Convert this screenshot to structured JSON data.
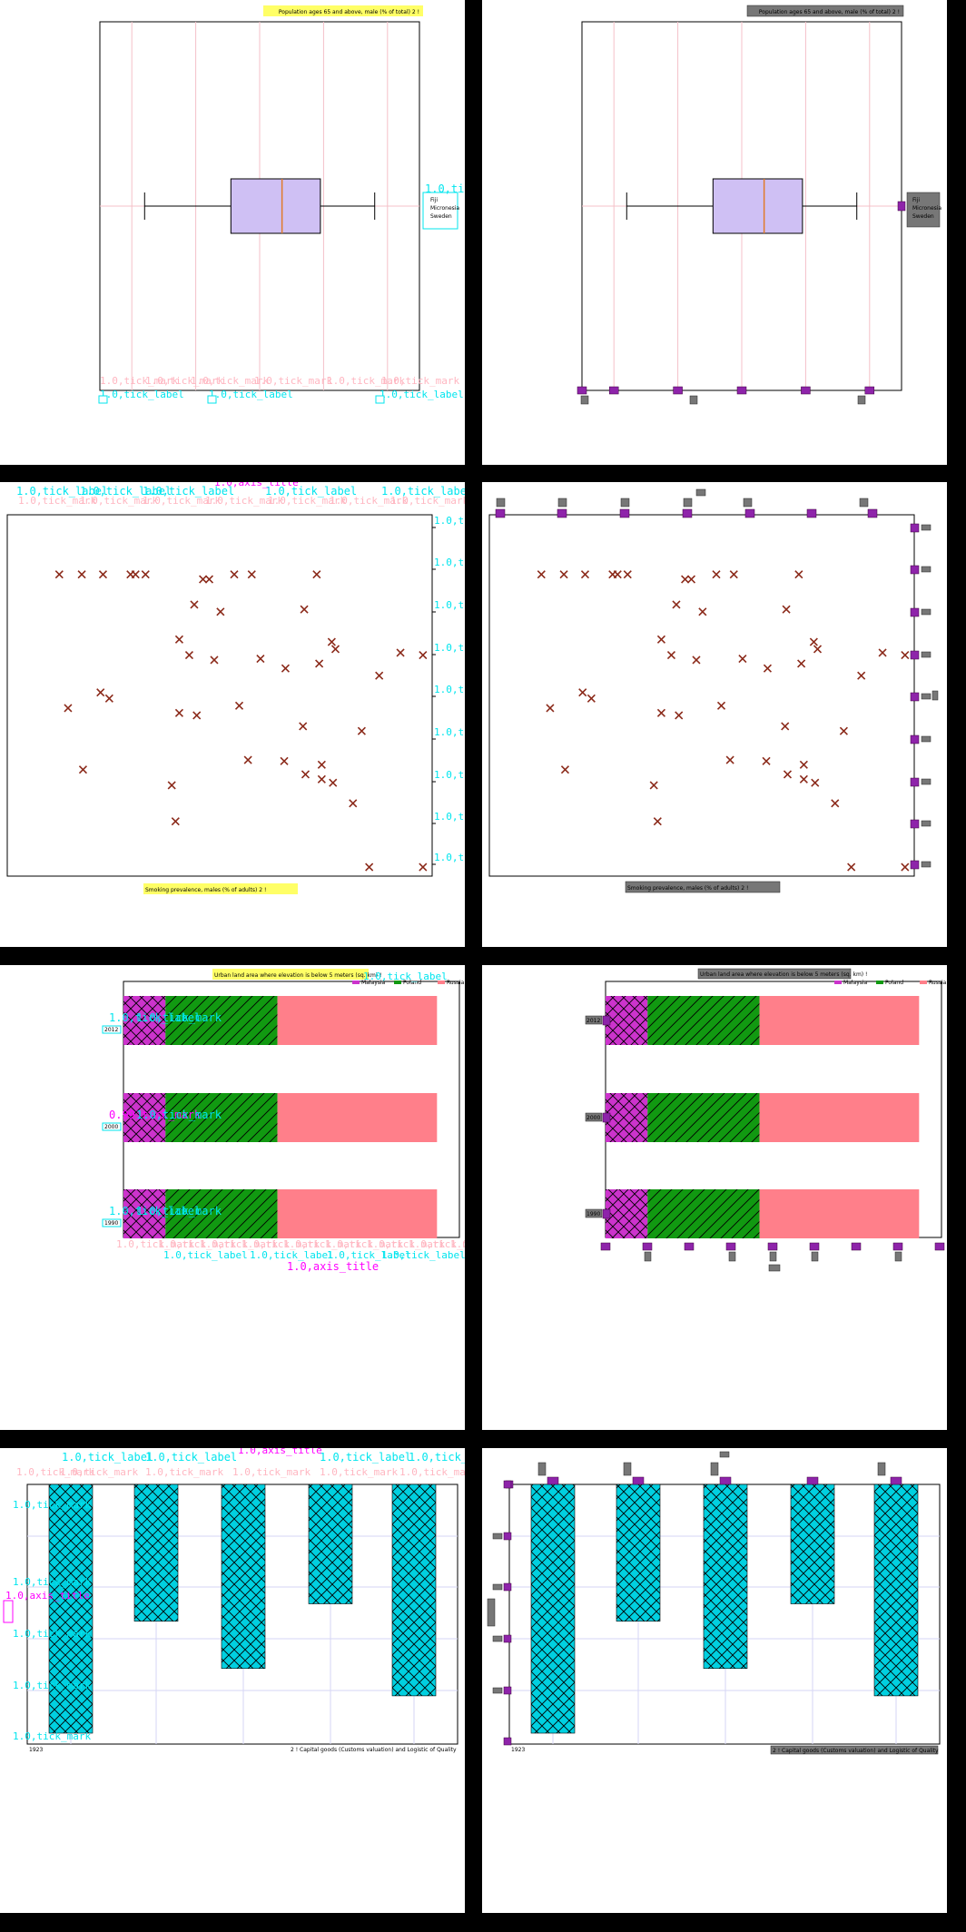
{
  "chart_data": [
    {
      "type": "box",
      "title": "Population ages 65 and above, male (% of total) 2 !",
      "legend": [
        "Fiji",
        "Micronesia",
        "Sweden"
      ],
      "box": {
        "whisker_low": 1.7,
        "q1": 3.05,
        "median": 3.85,
        "q3": 4.45,
        "whisker_high": 5.3
      },
      "xlim": [
        1.0,
        6.0
      ],
      "grid": true
    },
    {
      "type": "scatter",
      "xlabel": "Smoking prevalence, males (% of adults) 2 !",
      "marker": "x",
      "color": "#8b2a1a",
      "grid": false,
      "points": [
        [
          30,
          42
        ],
        [
          48,
          42
        ],
        [
          65,
          42
        ],
        [
          87,
          42
        ],
        [
          91,
          42
        ],
        [
          99,
          42
        ],
        [
          145,
          46
        ],
        [
          150,
          46
        ],
        [
          170,
          42
        ],
        [
          184,
          42
        ],
        [
          236,
          42
        ],
        [
          138,
          67
        ],
        [
          159,
          73
        ],
        [
          226,
          71
        ],
        [
          126,
          96
        ],
        [
          134,
          109
        ],
        [
          154,
          113
        ],
        [
          191,
          112
        ],
        [
          211,
          120
        ],
        [
          238,
          116
        ],
        [
          248,
          98
        ],
        [
          251,
          104
        ],
        [
          286,
          126
        ],
        [
          303,
          107
        ],
        [
          321,
          109
        ],
        [
          37,
          153
        ],
        [
          63,
          140
        ],
        [
          70,
          145
        ],
        [
          126,
          157
        ],
        [
          140,
          159
        ],
        [
          174,
          151
        ],
        [
          225,
          168
        ],
        [
          272,
          172
        ],
        [
          49,
          204
        ],
        [
          181,
          196
        ],
        [
          210,
          197
        ],
        [
          227,
          208
        ],
        [
          240,
          200
        ],
        [
          240,
          212
        ],
        [
          249,
          215
        ],
        [
          265,
          232
        ],
        [
          120,
          217
        ],
        [
          123,
          247
        ],
        [
          278,
          285
        ],
        [
          321,
          285
        ]
      ]
    },
    {
      "type": "bar",
      "orientation": "horizontal",
      "stacked": true,
      "title": "Urban land area where elevation is below 5 meters (sq. km) !",
      "legend_position": "top-right",
      "series": [
        {
          "name": "Malaysia",
          "color": "#cc33cc",
          "hatch": "crosshatch",
          "values": [
            15,
            15,
            15
          ]
        },
        {
          "name": "Poland",
          "color": "#119911",
          "hatch": "diagonal",
          "values": [
            40,
            40,
            40
          ]
        },
        {
          "name": "Russia",
          "color": "#ff7f8a",
          "hatch": "none",
          "values": [
            57,
            57,
            57
          ]
        }
      ],
      "categories": [
        "2012",
        "2000",
        "1990"
      ],
      "xlim": [
        0,
        120
      ]
    },
    {
      "type": "bar",
      "orientation": "vertical",
      "inverted_y": true,
      "xlabel": "2 ! Capital goods (Customs valuation) and Logistic of Quality",
      "color": "#00d0e0",
      "hatch": "crosshatch",
      "values": [
        100,
        55,
        74,
        48,
        85
      ],
      "ylim": [
        0,
        100
      ],
      "grid": true
    }
  ],
  "annotations": {
    "tick_label": "1.0,tick_label",
    "tick_mark": "1.0,tick_mark",
    "axis_title": "1.0,axis_title",
    "tick_mark_low": "0.99,tick_mark"
  }
}
